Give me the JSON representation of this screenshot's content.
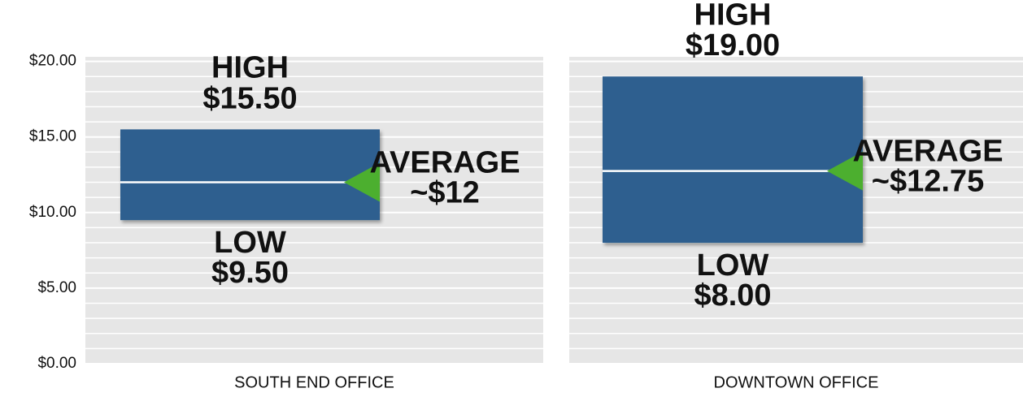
{
  "chart_data": {
    "type": "range",
    "categories": [
      "SOUTH END OFFICE",
      "DOWNTOWN OFFICE"
    ],
    "color": "#2e5f8f",
    "high": {
      "name": "HIGH",
      "values": [
        15.5,
        19
      ],
      "value_labels": [
        "$15.50",
        "$19.00"
      ]
    },
    "low": {
      "name": "LOW",
      "values": [
        9.5,
        8
      ],
      "value_labels": [
        "$9.50",
        "$8.00"
      ]
    },
    "average": {
      "name": "AVERAGE",
      "values": [
        12,
        12.75
      ],
      "value_labels": [
        "~$12",
        "~$12.75"
      ],
      "color": "#4caf2f"
    },
    "ylim": [
      0,
      20.3
    ],
    "yticks": [
      {
        "value": 0,
        "label": "$0.00"
      },
      {
        "value": 5,
        "label": "$5.00"
      },
      {
        "value": 10,
        "label": "$10.00"
      },
      {
        "value": 15,
        "label": "$15.00"
      },
      {
        "value": 20,
        "label": "$20.00"
      }
    ],
    "minor_yticks": [
      1,
      2,
      3,
      4,
      6,
      7,
      8,
      9,
      11,
      12,
      13,
      14,
      16,
      17,
      18,
      19
    ],
    "grid": true
  }
}
